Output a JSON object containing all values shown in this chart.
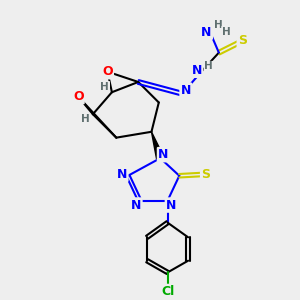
{
  "bg_color": "#eeeeee",
  "atom_colors": {
    "C": "#000000",
    "N": "#0000ff",
    "O": "#ff0000",
    "S": "#cccc00",
    "Cl": "#00aa00",
    "H": "#607070"
  }
}
